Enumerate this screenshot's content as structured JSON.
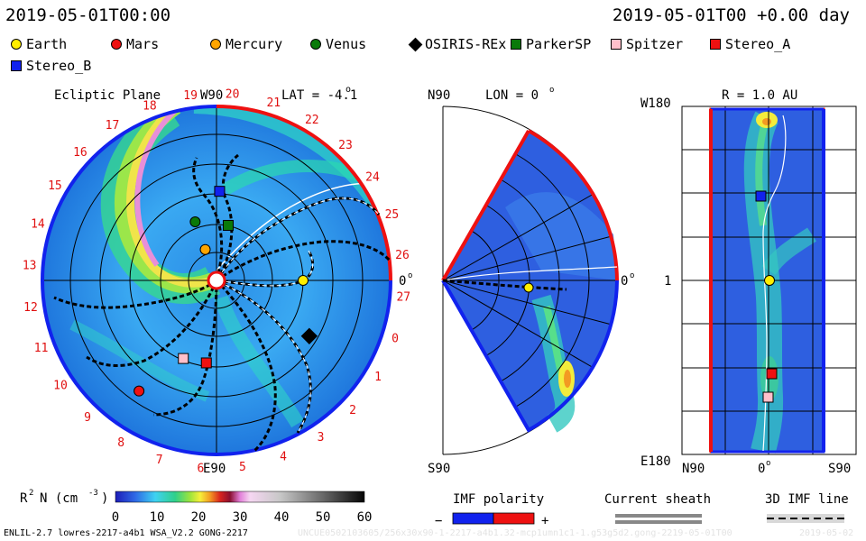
{
  "header": {
    "left_time": "2019-05-01T00:00",
    "right_time": "2019-05-01T00 +0.00 day"
  },
  "legend": [
    {
      "name": "Earth",
      "color": "#ffee00",
      "shape": "circle"
    },
    {
      "name": "Mars",
      "color": "#ee1111",
      "shape": "circle"
    },
    {
      "name": "Mercury",
      "color": "#ffa500",
      "shape": "circle"
    },
    {
      "name": "Venus",
      "color": "#0a7a0a",
      "shape": "circle"
    },
    {
      "name": "OSIRIS-REx",
      "color": "#000000",
      "shape": "diamond"
    },
    {
      "name": "ParkerSP",
      "color": "#0a7a0a",
      "shape": "square"
    },
    {
      "name": "Spitzer",
      "color": "#ffc0cb",
      "shape": "square"
    },
    {
      "name": "Stereo_A",
      "color": "#ee1111",
      "shape": "square"
    },
    {
      "name": "Stereo_B",
      "color": "#1122ee",
      "shape": "square"
    }
  ],
  "panels": {
    "ecliptic": {
      "title": "Ecliptic Plane",
      "top_label": "W90",
      "lat_label": "LAT = -4.1",
      "bottom_label": "E90",
      "right_label": "0"
    },
    "meridional": {
      "top_label": "N90",
      "lon_label": "LON = 0",
      "bottom_label": "S90",
      "right_label": "0"
    },
    "radial": {
      "r_label": "R = 1.0 AU",
      "top_left": "W180",
      "mid_left": "1",
      "bottom_left": "E180",
      "x_left": "N90",
      "x_mid": "0",
      "x_right": "S90"
    }
  },
  "carrington_labels": [
    "19",
    "20",
    "21",
    "22",
    "23",
    "24",
    "25",
    "26",
    "27",
    "0",
    "1",
    "2",
    "3",
    "4",
    "5",
    "6",
    "7",
    "8",
    "9",
    "10",
    "11",
    "12",
    "13",
    "14",
    "15",
    "16",
    "17",
    "18"
  ],
  "colorbar": {
    "label": "R",
    "label_mid": "N (cm",
    "label_end": ")",
    "ticks": [
      "0",
      "10",
      "20",
      "30",
      "40",
      "50",
      "60"
    ]
  },
  "imf_polarity": {
    "title": "IMF polarity",
    "minus": "−",
    "plus": "+"
  },
  "current_sheath": {
    "title": "Current sheath"
  },
  "imf_line": {
    "title": "3D IMF line"
  },
  "footer": {
    "left": "ENLIL-2.7 lowres-2217-a4b1 WSA_V2.2 GONG-2217",
    "center": "UNCUE0502103605/256x30x90-1-2217-a4b1.32-mcp1umn1c1-1.g53g5d2.gong-2219-05-01T00",
    "right": "2019-05-02"
  },
  "chart_data": [
    {
      "type": "heatmap",
      "title": "Ecliptic Plane",
      "description_free": true,
      "objects": [
        {
          "name": "Earth",
          "angle_deg": 0,
          "r_au": 1.0
        },
        {
          "name": "Mercury",
          "angle_deg": 110,
          "r_au": 0.38
        },
        {
          "name": "Venus",
          "angle_deg": 110,
          "r_au": 0.72
        },
        {
          "name": "ParkerSP",
          "angle_deg": 78,
          "r_au": 0.65
        },
        {
          "name": "Stereo_B",
          "angle_deg": 88,
          "r_au": 1.03
        },
        {
          "name": "OSIRIS-REx",
          "angle_deg": -31,
          "r_au": 1.25
        },
        {
          "name": "Stereo_A",
          "angle_deg": -97,
          "r_au": 0.96
        },
        {
          "name": "Spitzer",
          "angle_deg": -113,
          "r_au": 0.98
        },
        {
          "name": "Mars",
          "angle_deg": -125,
          "r_au": 1.56
        }
      ],
      "colorscale_range": [
        0,
        60
      ]
    },
    {
      "type": "heatmap",
      "title": "",
      "view": "meridional",
      "lon": 0,
      "lat_range": [
        -90,
        90
      ]
    },
    {
      "type": "heatmap",
      "title": "",
      "view": "R = 1.0 AU",
      "lon_range": [
        -180,
        180
      ],
      "lat_range": [
        -90,
        90
      ]
    }
  ]
}
